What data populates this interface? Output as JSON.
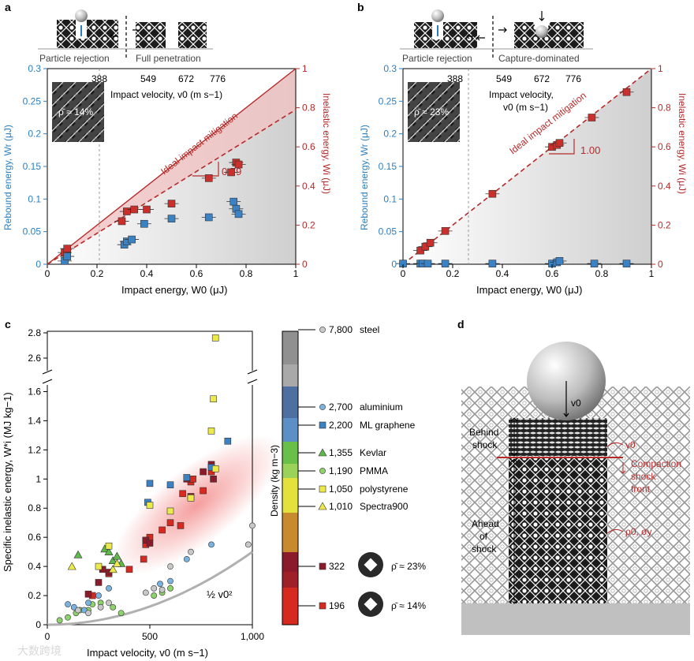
{
  "panels": {
    "a": "a",
    "b": "b",
    "c": "c",
    "d": "d"
  },
  "colors": {
    "red": "#b52a2a",
    "blue": "#2a7fc0",
    "rsq": "#c9302c",
    "bsq": "#3b82c4"
  },
  "panel_a": {
    "regime_left": "Particle rejection",
    "regime_right": "Full penetration",
    "rel_density": "ρ̄ ≈ 14%",
    "slope": "0.79",
    "ideal_label": "Ideal impact mitigation"
  },
  "panel_b": {
    "regime_left": "Particle rejection",
    "regime_right": "Capture-dominated",
    "rel_density": "ρ̄ ≈ 23%",
    "slope": "1.00",
    "ideal_label": "Ideal impact mitigation"
  },
  "axes_ab": {
    "xlabel": "Impact energy, W0 (μJ)",
    "ylabel_left": "Rebound energy, Wr (μJ)",
    "ylabel_right": "Inelastic energy, Wi (μJ)",
    "top_label": "Impact velocity, v0 (m s−1)",
    "x_ticks": [
      "0",
      "0.2",
      "0.4",
      "0.6",
      "0.8",
      "1"
    ],
    "yl_ticks": [
      "0",
      "0.05",
      "0.1",
      "0.15",
      "0.2",
      "0.25",
      "0.3"
    ],
    "yr_ticks": [
      "0",
      "0.2",
      "0.4",
      "0.6",
      "0.8",
      "1"
    ],
    "top_ticks": [
      "388",
      "549",
      "672",
      "776"
    ]
  },
  "panel_c": {
    "xlabel": "Impact velocity, v0 (m s−1)",
    "ylabel": "Specific inelastic energy, W*i (MJ kg−1)",
    "x_ticks": [
      "0",
      "500",
      "1,000"
    ],
    "y_ticks": [
      "0",
      "0.2",
      "0.4",
      "0.6",
      "0.8",
      "1",
      "1.2",
      "1.4",
      "1.6",
      "2.6",
      "2.8"
    ],
    "curve_label": "½ v0²",
    "density_label": "Density (kg m−3)",
    "materials": [
      {
        "value": "7,800",
        "name": "steel"
      },
      {
        "value": "2,700",
        "name": "aluminium"
      },
      {
        "value": "2,200",
        "name": "ML graphene"
      },
      {
        "value": "1,355",
        "name": "Kevlar"
      },
      {
        "value": "1,190",
        "name": "PMMA"
      },
      {
        "value": "1,050",
        "name": "polystyrene"
      },
      {
        "value": "1,010",
        "name": "Spectra900"
      },
      {
        "value": "322",
        "name": "ρ̄ ≈ 23%"
      },
      {
        "value": "196",
        "name": "ρ̄ ≈ 14%"
      }
    ]
  },
  "panel_d": {
    "behind": "Behind shock",
    "ahead": "Ahead of shock",
    "front": "Compaction shock front",
    "v0": "v0",
    "rho_sigma": "ρ0, σy"
  },
  "watermark": "大数跨境",
  "chart_data": [
    {
      "type": "scatter",
      "title": "a",
      "xlabel": "Impact energy, W0 (μJ)",
      "ylabel": "Rebound energy, Wr (μJ) / Inelastic energy, Wi (μJ)",
      "xlim": [
        0,
        1
      ],
      "ylim_left": [
        0,
        0.3
      ],
      "ylim_right": [
        0,
        1
      ],
      "series": [
        {
          "name": "Inelastic energy Wi",
          "axis": "right",
          "x": [
            0.07,
            0.08,
            0.3,
            0.32,
            0.35,
            0.4,
            0.5,
            0.65,
            0.74,
            0.76,
            0.77
          ],
          "y": [
            0.06,
            0.08,
            0.22,
            0.27,
            0.28,
            0.28,
            0.31,
            0.44,
            0.47,
            0.52,
            0.51
          ]
        },
        {
          "name": "Rebound energy Wr",
          "axis": "left",
          "x": [
            0.07,
            0.08,
            0.31,
            0.32,
            0.34,
            0.39,
            0.5,
            0.65,
            0.75,
            0.76,
            0.77
          ],
          "y": [
            0.005,
            0.012,
            0.03,
            0.035,
            0.038,
            0.062,
            0.07,
            0.072,
            0.096,
            0.085,
            0.077
          ]
        },
        {
          "name": "Ideal impact mitigation",
          "x": [
            0,
            1
          ],
          "y": [
            0,
            1
          ]
        },
        {
          "name": "Fit slope 0.79",
          "x": [
            0,
            1
          ],
          "y": [
            0,
            0.79
          ]
        }
      ]
    },
    {
      "type": "scatter",
      "title": "b",
      "xlabel": "Impact energy, W0 (μJ)",
      "ylabel": "Rebound energy, Wr (μJ) / Inelastic energy, Wi (μJ)",
      "xlim": [
        0,
        1
      ],
      "ylim_left": [
        0,
        0.3
      ],
      "ylim_right": [
        0,
        1
      ],
      "series": [
        {
          "name": "Inelastic energy Wi",
          "axis": "right",
          "x": [
            0.07,
            0.09,
            0.11,
            0.17,
            0.36,
            0.6,
            0.62,
            0.63,
            0.76,
            0.9
          ],
          "y": [
            0.07,
            0.09,
            0.11,
            0.17,
            0.36,
            0.6,
            0.61,
            0.62,
            0.75,
            0.88
          ]
        },
        {
          "name": "Rebound energy Wr",
          "axis": "left",
          "x": [
            0,
            0.07,
            0.08,
            0.1,
            0.17,
            0.36,
            0.6,
            0.62,
            0.63,
            0.77,
            0.9
          ],
          "y": [
            0.001,
            0.001,
            0.001,
            0.001,
            0.001,
            0.001,
            0.001,
            0.003,
            0.005,
            0.001,
            0.001
          ]
        },
        {
          "name": "Ideal impact mitigation",
          "x": [
            0,
            1
          ],
          "y": [
            0,
            1
          ]
        },
        {
          "name": "Fit slope 1.00",
          "x": [
            0,
            1
          ],
          "y": [
            0,
            1
          ]
        }
      ]
    },
    {
      "type": "scatter",
      "title": "c",
      "xlabel": "Impact velocity, v0 (m s−1)",
      "ylabel": "Specific inelastic energy (MJ kg−1)",
      "xlim": [
        0,
        1000
      ],
      "ylim": [
        0,
        2.8
      ],
      "y_break": [
        1.7,
        2.5
      ],
      "series": [
        {
          "name": "196 (ρ̄ ≈ 14%)",
          "marker": "red-square",
          "x": [
            220,
            300,
            400,
            470,
            480,
            500,
            560,
            600,
            650,
            660,
            700,
            710,
            760,
            800
          ],
          "y": [
            0.2,
            0.35,
            0.38,
            0.45,
            0.55,
            0.6,
            0.65,
            0.7,
            0.68,
            0.9,
            0.98,
            1.0,
            0.92,
            1.05
          ]
        },
        {
          "name": "322 (ρ̄ ≈ 23%)",
          "marker": "darkred-square",
          "x": [
            200,
            250,
            270,
            300,
            480,
            500,
            680,
            700,
            760,
            800,
            810
          ],
          "y": [
            0.21,
            0.29,
            0.38,
            0.36,
            0.58,
            0.56,
            1.0,
            0.88,
            1.05,
            1.1,
            1.0
          ]
        },
        {
          "name": "ML graphene",
          "marker": "blue-square",
          "x": [
            490,
            500,
            600,
            680,
            800,
            880
          ],
          "y": [
            0.84,
            0.97,
            0.96,
            1.01,
            1.08,
            1.26
          ]
        },
        {
          "name": "Kevlar",
          "marker": "green-triangle",
          "x": [
            150,
            280,
            300,
            320,
            340,
            360
          ],
          "y": [
            0.48,
            0.52,
            0.5,
            0.44,
            0.47,
            0.42
          ]
        },
        {
          "name": "PMMA",
          "marker": "green-circle",
          "x": [
            60,
            100,
            140,
            160,
            200,
            220,
            260,
            320,
            360,
            520,
            560,
            600
          ],
          "y": [
            0.03,
            0.05,
            0.08,
            0.1,
            0.1,
            0.14,
            0.15,
            0.12,
            0.08,
            0.2,
            0.22,
            0.25
          ]
        },
        {
          "name": "polystyrene",
          "marker": "yellow-square",
          "x": [
            250,
            300,
            500,
            600,
            700,
            800,
            810,
            820,
            820
          ],
          "y": [
            0.4,
            0.54,
            0.82,
            0.78,
            0.87,
            1.33,
            1.55,
            2.76,
            1.07
          ]
        },
        {
          "name": "Spectra900",
          "marker": "yellow-triangle",
          "x": [
            120,
            320,
            340
          ],
          "y": [
            0.4,
            0.38,
            0.42
          ]
        },
        {
          "name": "aluminium",
          "marker": "blue-circle",
          "x": [
            100,
            130,
            180,
            200,
            250,
            300,
            550,
            600,
            680,
            800
          ],
          "y": [
            0.14,
            0.12,
            0.1,
            0.15,
            0.2,
            0.25,
            0.28,
            0.3,
            0.45,
            0.55
          ]
        },
        {
          "name": "steel",
          "marker": "grey-circle",
          "x": [
            150,
            200,
            260,
            300,
            480,
            520,
            560,
            600,
            700,
            980,
            1000
          ],
          "y": [
            0.1,
            0.08,
            0.12,
            0.15,
            0.22,
            0.25,
            0.24,
            0.4,
            0.5,
            0.55,
            0.68
          ]
        },
        {
          "name": "½ v0²",
          "marker": "line",
          "x": [
            0,
            200,
            400,
            600,
            800,
            1000
          ],
          "y": [
            0,
            0.02,
            0.08,
            0.18,
            0.32,
            0.5
          ]
        }
      ]
    }
  ]
}
